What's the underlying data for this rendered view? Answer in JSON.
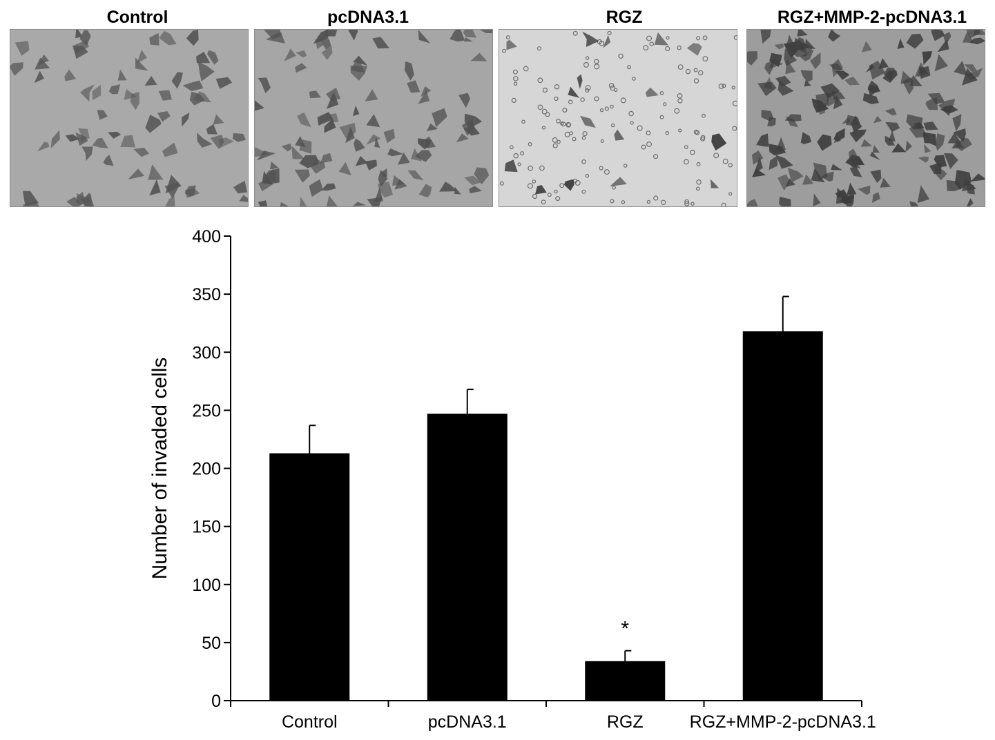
{
  "panels": [
    {
      "label": "Control",
      "density": 70,
      "seed": 11,
      "bg": "#a9a9a9",
      "cell": "#555555",
      "round_cells": 0
    },
    {
      "label": "pcDNA3.1",
      "density": 95,
      "seed": 23,
      "bg": "#a6a6a6",
      "cell": "#505050",
      "round_cells": 0
    },
    {
      "label": "RGZ",
      "density": 16,
      "seed": 37,
      "bg": "#d6d6d6",
      "cell": "#3c3c3c",
      "round_cells": 140
    },
    {
      "label": "RGZ+MMP-2-pcDNA3.1",
      "density": 150,
      "seed": 53,
      "bg": "#9d9d9d",
      "cell": "#3e3e3e",
      "round_cells": 0
    }
  ],
  "chart_data": {
    "type": "bar",
    "categories": [
      "Control",
      "pcDNA3.1",
      "RGZ",
      "RGZ+MMP-2-pcDNA3.1"
    ],
    "values": [
      213,
      247,
      34,
      318
    ],
    "errors": [
      24,
      21,
      9,
      30
    ],
    "annotations": [
      "",
      "",
      "*",
      ""
    ],
    "ylabel": "Number of invaded cells",
    "xlabel": "",
    "ylim": [
      0,
      400
    ],
    "yticks": [
      0,
      50,
      100,
      150,
      200,
      250,
      300,
      350,
      400
    ],
    "bar_color": "#000000",
    "grid": false
  }
}
